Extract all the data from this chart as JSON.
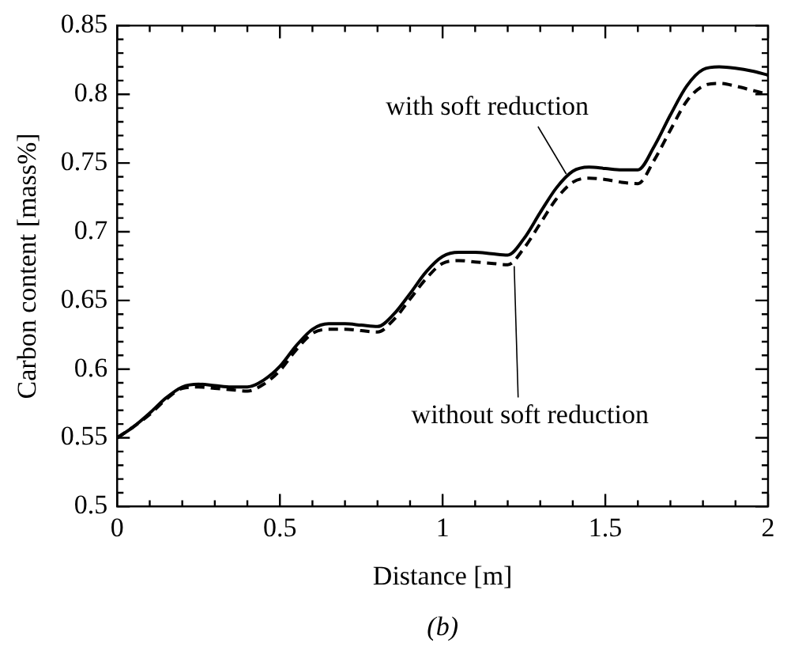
{
  "chart_data": {
    "type": "line",
    "xlabel": "Distance [m]",
    "ylabel": "Carbon content [mass%]",
    "xlim": [
      0,
      2
    ],
    "xticks": [
      0,
      0.5,
      1,
      1.5,
      2
    ],
    "ylim": [
      0.5,
      0.85
    ],
    "yticks": [
      0.5,
      0.55,
      0.6,
      0.65,
      0.7,
      0.75,
      0.8,
      0.85
    ],
    "grid": false,
    "legend": false,
    "marker": "none",
    "series": [
      {
        "color": "#000000",
        "line_style": "solid",
        "x": [
          0,
          0.05,
          0.1,
          0.15,
          0.2,
          0.25,
          0.3,
          0.35,
          0.4,
          0.45,
          0.5,
          0.55,
          0.6,
          0.65,
          0.7,
          0.75,
          0.8,
          0.85,
          0.9,
          0.95,
          1.0,
          1.05,
          1.1,
          1.15,
          1.2,
          1.25,
          1.3,
          1.35,
          1.4,
          1.45,
          1.5,
          1.55,
          1.6,
          1.65,
          1.7,
          1.75,
          1.8,
          1.85,
          1.9,
          1.95,
          2.0
        ],
        "values": [
          0.55,
          0.558,
          0.568,
          0.579,
          0.587,
          0.589,
          0.588,
          0.587,
          0.587,
          0.592,
          0.602,
          0.617,
          0.629,
          0.633,
          0.633,
          0.632,
          0.631,
          0.64,
          0.655,
          0.671,
          0.682,
          0.685,
          0.685,
          0.684,
          0.683,
          0.695,
          0.714,
          0.732,
          0.744,
          0.747,
          0.746,
          0.745,
          0.745,
          0.762,
          0.785,
          0.806,
          0.818,
          0.82,
          0.819,
          0.817,
          0.814
        ]
      },
      {
        "color": "#000000",
        "line_style": "dashed",
        "x": [
          0,
          0.05,
          0.1,
          0.15,
          0.2,
          0.25,
          0.3,
          0.35,
          0.4,
          0.45,
          0.5,
          0.55,
          0.6,
          0.65,
          0.7,
          0.75,
          0.8,
          0.85,
          0.9,
          0.95,
          1.0,
          1.05,
          1.1,
          1.15,
          1.2,
          1.25,
          1.3,
          1.35,
          1.4,
          1.45,
          1.5,
          1.55,
          1.6,
          1.65,
          1.7,
          1.75,
          1.8,
          1.85,
          1.9,
          1.95,
          2.0
        ],
        "values": [
          0.55,
          0.558,
          0.567,
          0.578,
          0.586,
          0.587,
          0.586,
          0.585,
          0.584,
          0.589,
          0.599,
          0.614,
          0.626,
          0.629,
          0.629,
          0.628,
          0.627,
          0.636,
          0.651,
          0.666,
          0.677,
          0.679,
          0.678,
          0.677,
          0.676,
          0.688,
          0.706,
          0.724,
          0.736,
          0.739,
          0.738,
          0.736,
          0.735,
          0.752,
          0.774,
          0.795,
          0.806,
          0.808,
          0.806,
          0.803,
          0.8
        ]
      }
    ],
    "annotations": [
      {
        "text": "with soft reduction",
        "x": 1.38,
        "y": 0.742
      },
      {
        "text": "without soft reduction",
        "x": 1.22,
        "y": 0.675
      },
      "(b)"
    ]
  }
}
